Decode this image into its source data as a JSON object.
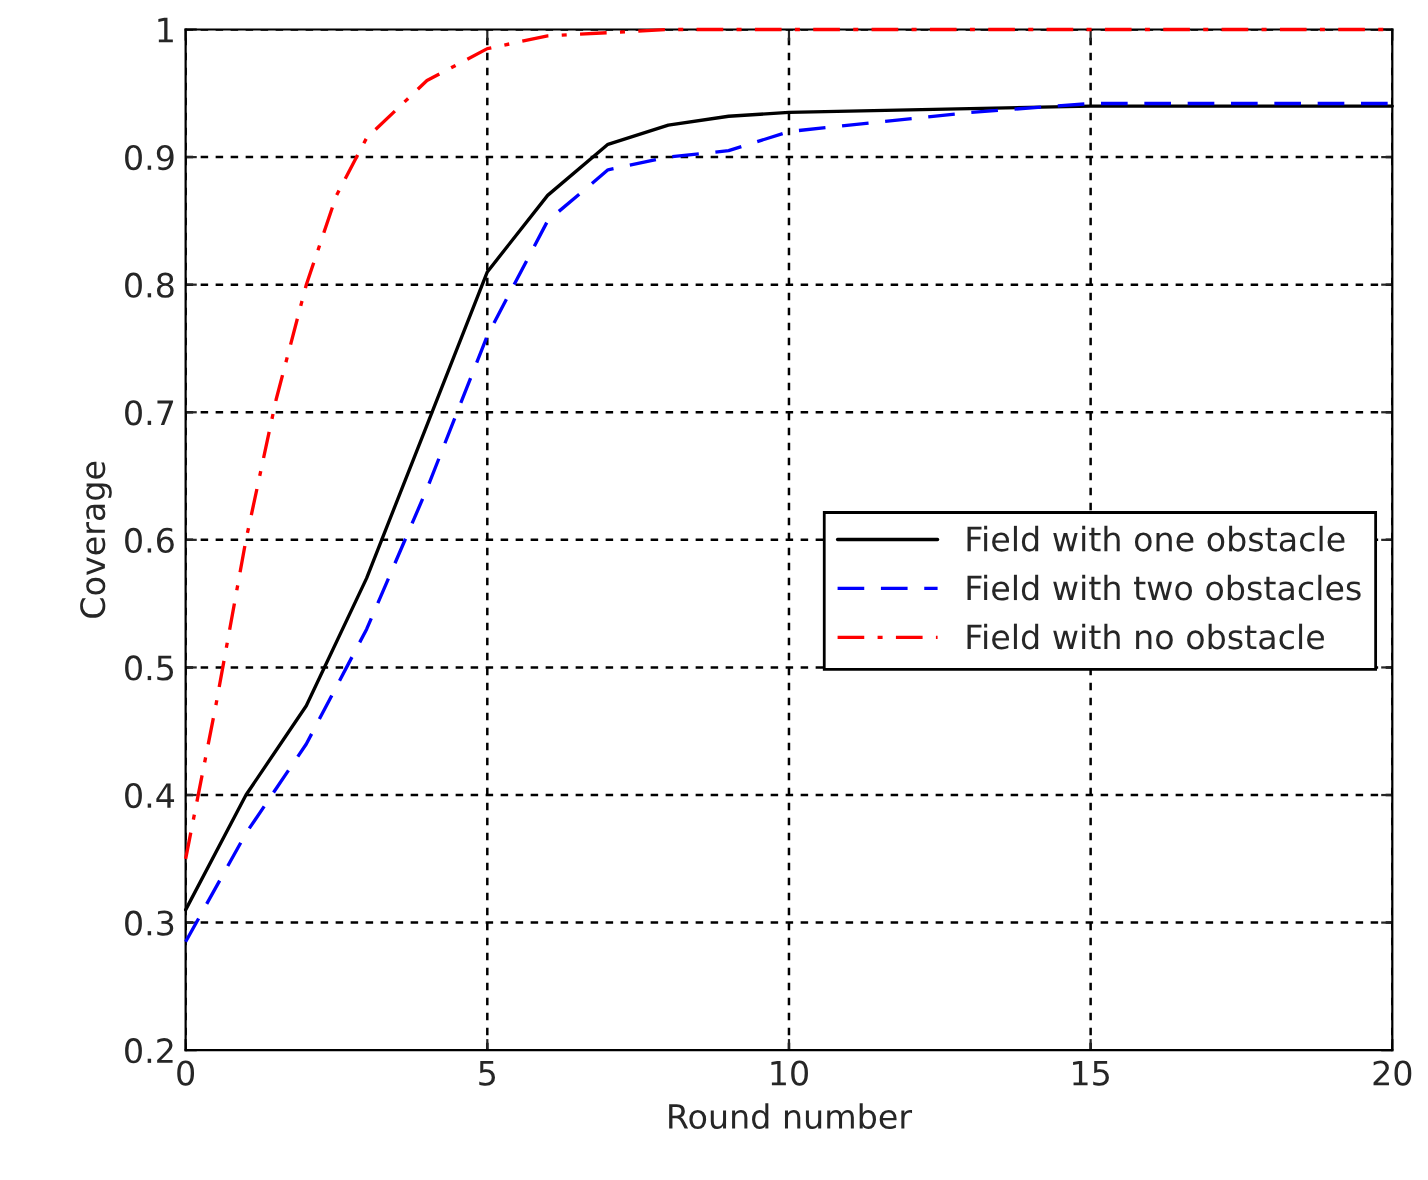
{
  "chart_data": {
    "type": "line",
    "xlabel": "Round number",
    "ylabel": "Coverage",
    "xlim": [
      0,
      20
    ],
    "xticks": [
      0,
      5,
      10,
      15,
      20
    ],
    "ylim": [
      0.2,
      1
    ],
    "yticks": [
      0.2,
      0.3,
      0.4,
      0.5,
      0.6,
      0.7,
      0.8,
      0.9,
      1
    ],
    "grid": true,
    "legend": "right",
    "series": [
      {
        "name": "Field with one obstacle",
        "color": "#000000",
        "line_style": "solid",
        "x": [
          0,
          1,
          2,
          3,
          4,
          5,
          6,
          7,
          8,
          9,
          10,
          12,
          15,
          20
        ],
        "values": [
          0.31,
          0.4,
          0.47,
          0.57,
          0.69,
          0.81,
          0.87,
          0.91,
          0.925,
          0.932,
          0.935,
          0.937,
          0.94,
          0.94
        ]
      },
      {
        "name": "Field with two obstacles",
        "color": "#0000ff",
        "line_style": "dashed",
        "x": [
          0,
          1,
          2,
          3,
          4,
          5,
          6,
          7,
          8,
          9,
          10,
          11,
          13,
          15,
          20
        ],
        "values": [
          0.285,
          0.37,
          0.44,
          0.53,
          0.64,
          0.76,
          0.85,
          0.89,
          0.9,
          0.905,
          0.92,
          0.925,
          0.935,
          0.942,
          0.942
        ]
      },
      {
        "name": "Field with no obstacle",
        "color": "#ff0000",
        "line_style": "dashdot",
        "x": [
          0,
          0.5,
          1,
          1.5,
          2,
          2.5,
          3,
          4,
          5,
          6,
          8,
          20
        ],
        "values": [
          0.35,
          0.47,
          0.6,
          0.71,
          0.8,
          0.87,
          0.915,
          0.96,
          0.985,
          0.995,
          1,
          1
        ]
      }
    ]
  }
}
